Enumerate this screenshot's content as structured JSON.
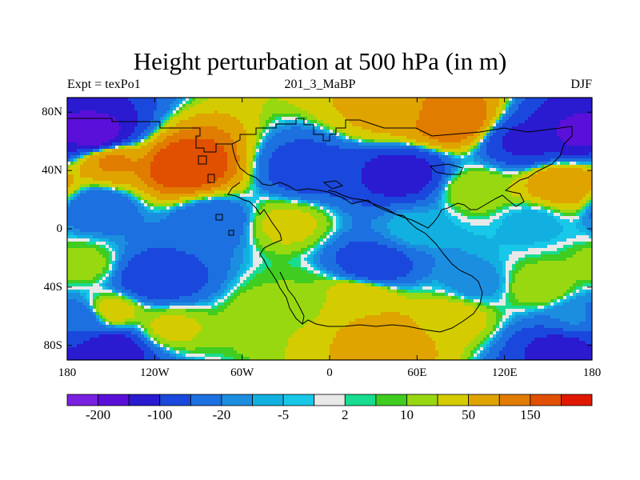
{
  "chart_data": {
    "type": "heatmap",
    "title": "Height perturbation at 500 hPa (in m)",
    "subtitle_left": "Expt = texPo1",
    "subtitle_center": "201_3_MaBP",
    "subtitle_right": "DJF",
    "xlim": [
      -180,
      180
    ],
    "ylim": [
      -90,
      90
    ],
    "x_ticks": [
      {
        "value": -180,
        "label": "180"
      },
      {
        "value": -120,
        "label": "120W"
      },
      {
        "value": -60,
        "label": "60W"
      },
      {
        "value": 0,
        "label": "0"
      },
      {
        "value": 60,
        "label": "60E"
      },
      {
        "value": 120,
        "label": "120E"
      },
      {
        "value": 180,
        "label": "180"
      }
    ],
    "y_ticks": [
      {
        "value": 80,
        "label": "80N"
      },
      {
        "value": 40,
        "label": "40N"
      },
      {
        "value": 0,
        "label": "0"
      },
      {
        "value": -40,
        "label": "40S"
      },
      {
        "value": -80,
        "label": "80S"
      }
    ],
    "colorbar": {
      "levels": [
        -200,
        -150,
        -100,
        -50,
        -20,
        -10,
        -5,
        -2,
        2,
        5,
        10,
        20,
        50,
        100,
        150,
        200
      ],
      "labels": [
        {
          "value": -200,
          "label": "-200"
        },
        {
          "value": -100,
          "label": "-100"
        },
        {
          "value": -20,
          "label": "-20"
        },
        {
          "value": -5,
          "label": "-5"
        },
        {
          "value": 2,
          "label": "2"
        },
        {
          "value": 10,
          "label": "10"
        },
        {
          "value": 50,
          "label": "50"
        },
        {
          "value": 150,
          "label": "150"
        }
      ],
      "colors": [
        "#7a20e0",
        "#5a10d8",
        "#2a1ad0",
        "#1a48dc",
        "#1c70e0",
        "#1c8ee0",
        "#12b0e0",
        "#18c8e8",
        "#e8e8e8",
        "#18dc90",
        "#40cc20",
        "#98d810",
        "#d4cc00",
        "#e0a400",
        "#e07c00",
        "#e05000",
        "#e01800"
      ]
    },
    "features": [
      {
        "lon": -100,
        "lat": 43,
        "value": 200
      },
      {
        "lon": -150,
        "lat": 47,
        "value": 110
      },
      {
        "lon": 83,
        "lat": 75,
        "value": 150
      },
      {
        "lon": 40,
        "lat": 80,
        "value": 60
      },
      {
        "lon": -160,
        "lat": 63,
        "value": -180
      },
      {
        "lon": 170,
        "lat": 65,
        "value": -160
      },
      {
        "lon": 135,
        "lat": 60,
        "value": -110
      },
      {
        "lon": 50,
        "lat": 37,
        "value": -130
      },
      {
        "lon": -15,
        "lat": 40,
        "value": -70
      },
      {
        "lon": 160,
        "lat": 30,
        "value": 90
      },
      {
        "lon": 100,
        "lat": 27,
        "value": 20
      },
      {
        "lon": -160,
        "lat": 15,
        "value": -40
      },
      {
        "lon": -80,
        "lat": 5,
        "value": -40
      },
      {
        "lon": -30,
        "lat": 3,
        "value": 25
      },
      {
        "lon": 60,
        "lat": 0,
        "value": -5
      },
      {
        "lon": 140,
        "lat": 5,
        "value": -8
      },
      {
        "lon": -170,
        "lat": -25,
        "value": 15
      },
      {
        "lon": -120,
        "lat": -35,
        "value": -90
      },
      {
        "lon": 30,
        "lat": -25,
        "value": -80
      },
      {
        "lon": 100,
        "lat": -38,
        "value": -15
      },
      {
        "lon": -150,
        "lat": -57,
        "value": 35
      },
      {
        "lon": -110,
        "lat": -68,
        "value": 25
      },
      {
        "lon": -20,
        "lat": -45,
        "value": 10
      },
      {
        "lon": 20,
        "lat": -47,
        "value": 45
      },
      {
        "lon": 145,
        "lat": -40,
        "value": 20
      },
      {
        "lon": 170,
        "lat": -60,
        "value": -15
      },
      {
        "lon": -150,
        "lat": -82,
        "value": -140
      },
      {
        "lon": -170,
        "lat": -62,
        "value": -50
      },
      {
        "lon": 40,
        "lat": -75,
        "value": 80
      },
      {
        "lon": -40,
        "lat": -60,
        "value": 20
      },
      {
        "lon": 160,
        "lat": -82,
        "value": -120
      },
      {
        "lon": 85,
        "lat": -60,
        "value": 30
      }
    ]
  }
}
